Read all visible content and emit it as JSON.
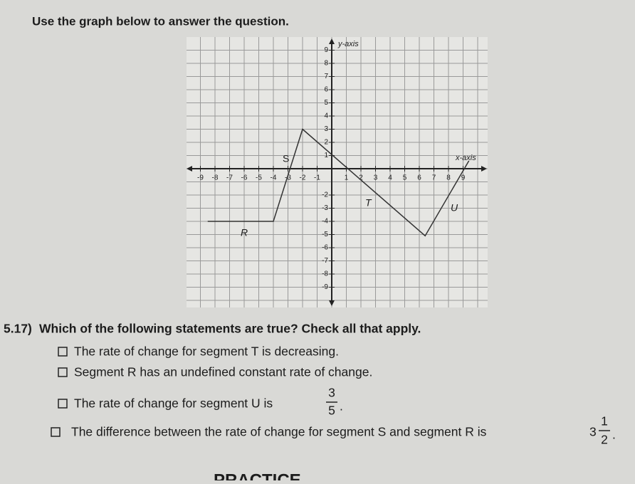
{
  "header": {
    "title": "Use the graph below to answer the question."
  },
  "graph": {
    "y_axis_label": "y-axis",
    "x_axis_label": "x-axis",
    "x_tick_labels": [
      -9,
      -8,
      -7,
      -6,
      -5,
      -4,
      -3,
      -2,
      -1,
      1,
      2,
      3,
      4,
      5,
      6,
      7,
      8,
      9
    ],
    "y_tick_labels": [
      9,
      8,
      7,
      6,
      5,
      4,
      3,
      2,
      1,
      -2,
      -3,
      -4,
      -5,
      -6,
      -7,
      -8,
      -9
    ],
    "segment_labels": [
      "R",
      "S",
      "T",
      "U"
    ]
  },
  "question": {
    "number": "5.17)",
    "prompt": "Which of the following statements are true? Check all that apply.",
    "options": [
      {
        "text": "The rate of change for segment T is decreasing."
      },
      {
        "text": "Segment R has an undefined constant rate of change."
      },
      {
        "text": "The rate of change for segment U is",
        "numerator": "3",
        "denominator": "5",
        "end": "."
      },
      {
        "text": "The difference between the rate of change for segment S and segment R is",
        "whole": "3",
        "numerator": "1",
        "denominator": "2",
        "end": "."
      }
    ]
  },
  "footer": {
    "text": "PRACTICE"
  }
}
